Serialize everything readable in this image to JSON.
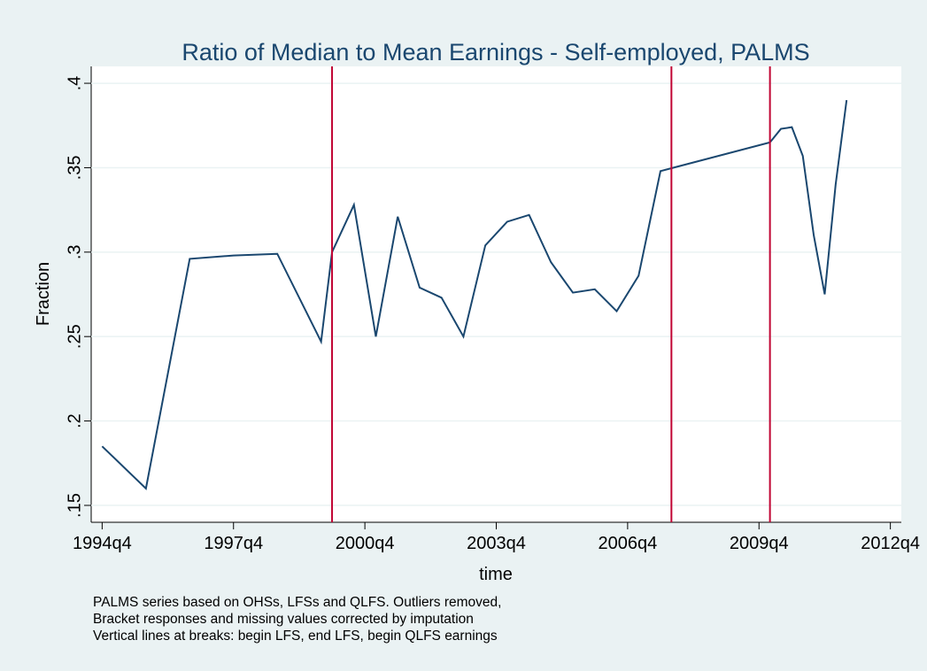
{
  "chart_data": {
    "type": "line",
    "title": "Ratio of Median to Mean Earnings - Self-employed, PALMS",
    "x_label": "time",
    "y_label": "Fraction",
    "x": [
      "1994q4",
      "1995q4",
      "1996q4",
      "1997q4",
      "1998q4",
      "1999q4",
      "2000q1",
      "2000q3",
      "2001q1",
      "2001q3",
      "2002q1",
      "2002q3",
      "2003q1",
      "2003q3",
      "2004q1",
      "2004q3",
      "2005q1",
      "2005q3",
      "2006q1",
      "2006q3",
      "2007q1",
      "2007q3",
      "2010q1",
      "2010q2",
      "2010q3",
      "2010q4",
      "2011q1",
      "2011q2",
      "2011q3",
      "2011q4"
    ],
    "series": [
      {
        "name": "Fraction",
        "color": "#1a476f",
        "values": [
          0.185,
          0.16,
          0.296,
          0.298,
          0.299,
          0.247,
          0.3,
          0.328,
          0.25,
          0.321,
          0.279,
          0.273,
          0.25,
          0.304,
          0.318,
          0.322,
          0.294,
          0.276,
          0.278,
          0.265,
          0.286,
          0.348,
          0.365,
          0.373,
          0.374,
          0.357,
          0.31,
          0.275,
          0.34,
          0.39
        ]
      }
    ],
    "vlines": {
      "x": [
        "2000q1",
        "2007q4",
        "2010q1"
      ],
      "color": "#c10534"
    },
    "xlim": [
      "1994q3",
      "2013q1"
    ],
    "xticks": [
      "1994q4",
      "1997q4",
      "2000q4",
      "2003q4",
      "2006q4",
      "2009q4",
      "2012q4"
    ],
    "ylim": [
      0.14,
      0.41
    ],
    "yticks": [
      {
        "value": 0.15,
        "label": ".15"
      },
      {
        "value": 0.2,
        "label": ".2"
      },
      {
        "value": 0.25,
        "label": ".25"
      },
      {
        "value": 0.3,
        "label": ".3"
      },
      {
        "value": 0.35,
        "label": ".35"
      },
      {
        "value": 0.4,
        "label": ".4"
      }
    ],
    "grid": true,
    "notes": [
      "PALMS series based on OHSs, LFSs and QLFS. Outliers removed,",
      "Bracket responses and missing values corrected by imputation",
      "Vertical lines at breaks: begin LFS, end LFS, begin QLFS earnings"
    ]
  }
}
